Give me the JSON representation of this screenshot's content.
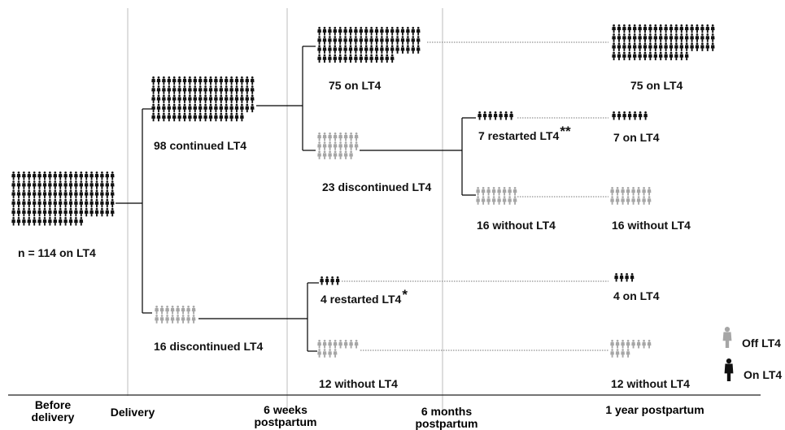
{
  "groups": {
    "baseline": {
      "label": "n = 114 on LT4",
      "count": 114,
      "status": "on"
    },
    "continued": {
      "label": "98 continued LT4",
      "count": 98,
      "status": "on"
    },
    "discontinued_delivery": {
      "label": "16 discontinued LT4",
      "count": 16,
      "status": "off"
    },
    "on75_6w": {
      "label": "75 on LT4",
      "count": 75,
      "status": "on"
    },
    "disc23": {
      "label": "23 discontinued LT4",
      "count": 23,
      "status": "off"
    },
    "restart4": {
      "label": "4 restarted LT4",
      "asterisk": "*",
      "count": 4,
      "status": "on"
    },
    "without12": {
      "label": "12 without LT4",
      "count": 12,
      "status": "off"
    },
    "restart7": {
      "label": "7 restarted LT4",
      "asterisk": "**",
      "count": 7,
      "status": "on"
    },
    "without16": {
      "label": "16 without LT4",
      "count": 16,
      "status": "off"
    },
    "on75_1y": {
      "label": "75 on LT4",
      "count": 75,
      "status": "on"
    },
    "on7_1y": {
      "label": "7 on LT4",
      "count": 7,
      "status": "on"
    },
    "without16_1y": {
      "label": "16 without LT4",
      "count": 16,
      "status": "off"
    },
    "on4_1y": {
      "label": "4 on LT4",
      "count": 4,
      "status": "on"
    },
    "without12_1y": {
      "label": "12 without LT4",
      "count": 12,
      "status": "off"
    }
  },
  "timeline": {
    "before_delivery": "Before delivery",
    "delivery": "Delivery",
    "six_weeks": "6 weeks postpartum",
    "six_months": "6 months postpartum",
    "one_year": "1 year postpartum"
  },
  "legend": {
    "off": "Off LT4",
    "on": "On LT4"
  },
  "colors": {
    "on": "#111111",
    "off": "#a6a6a6",
    "line": "#000000",
    "dotted": "#777777",
    "timeline_vertical": "#bdbdbd"
  },
  "icons": {
    "figure": "person-icon"
  }
}
